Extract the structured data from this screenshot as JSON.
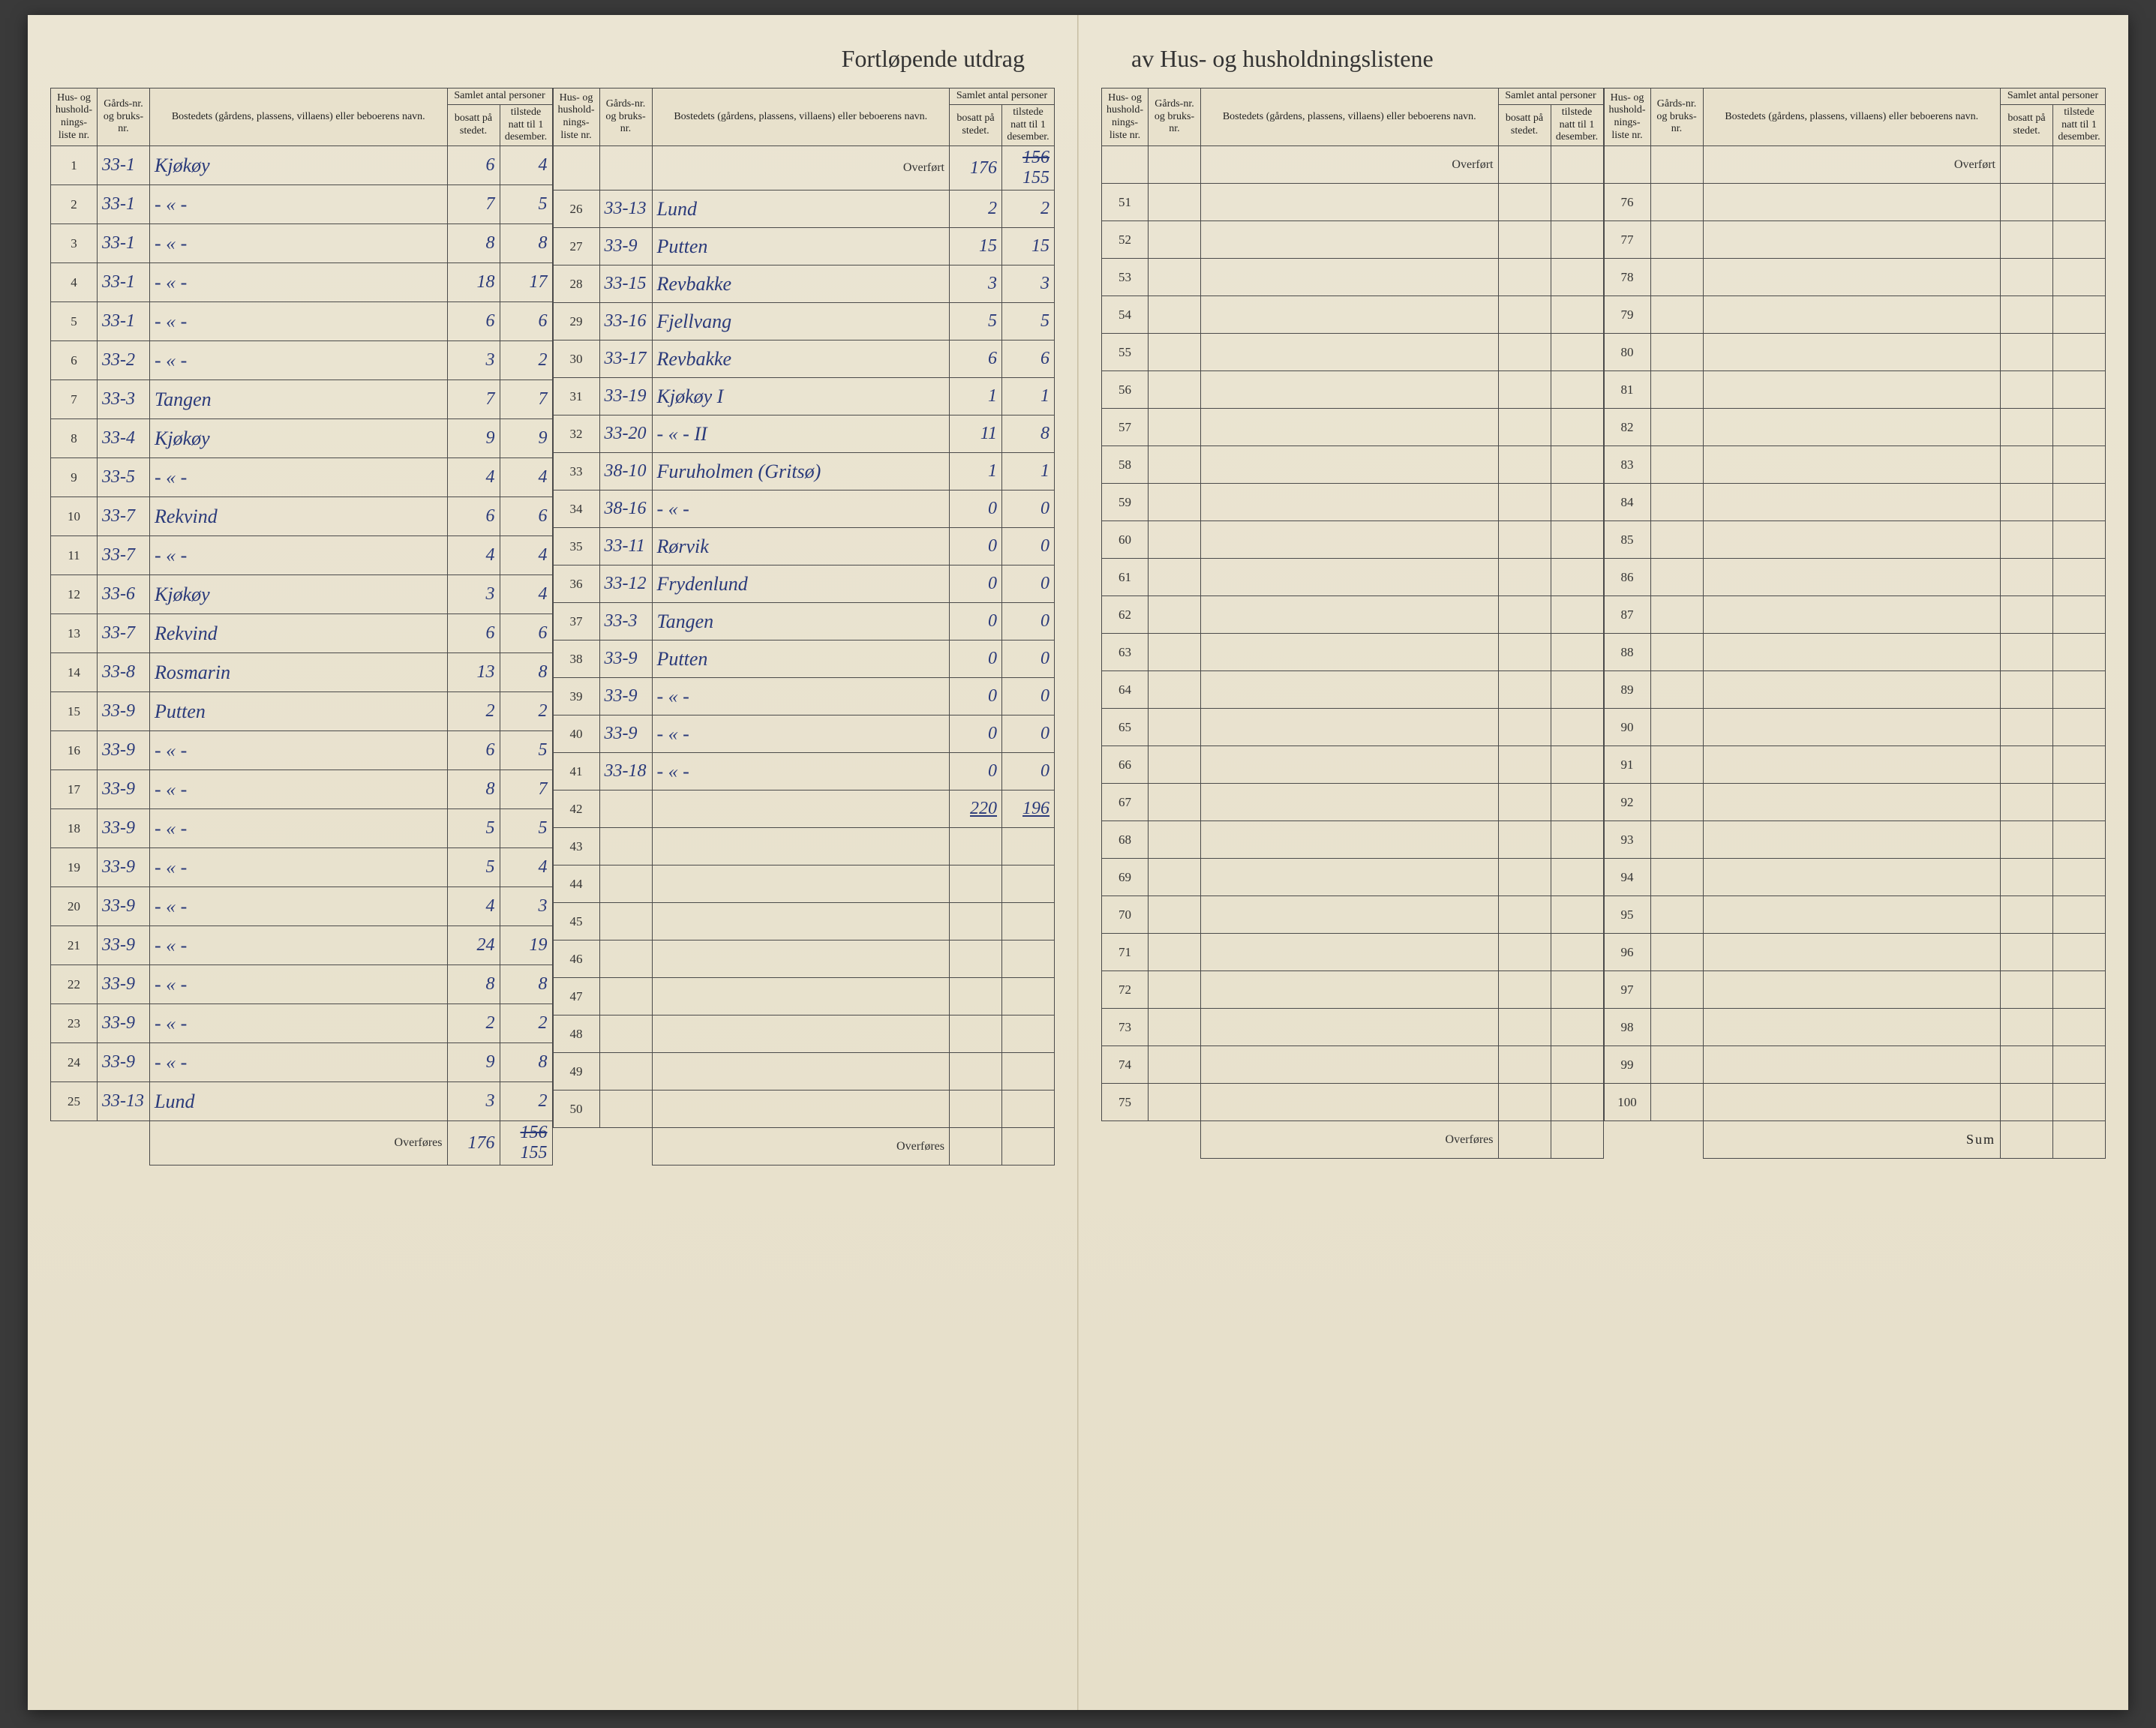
{
  "title_left": "Fortløpende utdrag",
  "title_right": "av Hus- og husholdningslistene",
  "headers": {
    "rownum": "Hus- og hushold-nings-liste nr.",
    "gards": "Gårds-nr. og bruks-nr.",
    "name": "Bostedets (gårdens, plassens, villaens) eller beboerens navn.",
    "samlet": "Samlet antal personer",
    "bosatt": "bosatt på stedet.",
    "tilstede": "tilstede natt til 1 desember."
  },
  "overfort": "Overført",
  "overfores": "Overføres",
  "sum": "Sum",
  "carry_in": {
    "bosatt": "176",
    "tilstede_struck": "156",
    "tilstede": "155"
  },
  "total_col2": {
    "bosatt": "220",
    "tilstede": "196"
  },
  "carry_out": {
    "bosatt": "176",
    "tilstede_struck": "156",
    "tilstede": "155"
  },
  "rows_col1": [
    {
      "n": "1",
      "g": "33-1",
      "name": "Kjøkøy",
      "b": "6",
      "t": "4"
    },
    {
      "n": "2",
      "g": "33-1",
      "name": "- « -",
      "b": "7",
      "t": "5"
    },
    {
      "n": "3",
      "g": "33-1",
      "name": "- « -",
      "b": "8",
      "t": "8"
    },
    {
      "n": "4",
      "g": "33-1",
      "name": "- « -",
      "b": "18",
      "t": "17"
    },
    {
      "n": "5",
      "g": "33-1",
      "name": "- « -",
      "b": "6",
      "t": "6"
    },
    {
      "n": "6",
      "g": "33-2",
      "name": "- « -",
      "b": "3",
      "t": "2"
    },
    {
      "n": "7",
      "g": "33-3",
      "name": "Tangen",
      "b": "7",
      "t": "7"
    },
    {
      "n": "8",
      "g": "33-4",
      "name": "Kjøkøy",
      "b": "9",
      "t": "9"
    },
    {
      "n": "9",
      "g": "33-5",
      "name": "- « -",
      "b": "4",
      "t": "4"
    },
    {
      "n": "10",
      "g": "33-7",
      "name": "Rekvind",
      "b": "6",
      "t": "6"
    },
    {
      "n": "11",
      "g": "33-7",
      "name": "- « -",
      "b": "4",
      "t": "4"
    },
    {
      "n": "12",
      "g": "33-6",
      "name": "Kjøkøy",
      "b": "3",
      "t": "4"
    },
    {
      "n": "13",
      "g": "33-7",
      "name": "Rekvind",
      "b": "6",
      "t": "6"
    },
    {
      "n": "14",
      "g": "33-8",
      "name": "Rosmarin",
      "b": "13",
      "t": "8"
    },
    {
      "n": "15",
      "g": "33-9",
      "name": "Putten",
      "b": "2",
      "t": "2"
    },
    {
      "n": "16",
      "g": "33-9",
      "name": "- « -",
      "b": "6",
      "t": "5"
    },
    {
      "n": "17",
      "g": "33-9",
      "name": "- « -",
      "b": "8",
      "t": "7"
    },
    {
      "n": "18",
      "g": "33-9",
      "name": "- « -",
      "b": "5",
      "t": "5"
    },
    {
      "n": "19",
      "g": "33-9",
      "name": "- « -",
      "b": "5",
      "t": "4"
    },
    {
      "n": "20",
      "g": "33-9",
      "name": "- « -",
      "b": "4",
      "t": "3"
    },
    {
      "n": "21",
      "g": "33-9",
      "name": "- « -",
      "b": "24",
      "t": "19"
    },
    {
      "n": "22",
      "g": "33-9",
      "name": "- « -",
      "b": "8",
      "t": "8"
    },
    {
      "n": "23",
      "g": "33-9",
      "name": "- « -",
      "b": "2",
      "t": "2"
    },
    {
      "n": "24",
      "g": "33-9",
      "name": "- « -",
      "b": "9",
      "t": "8"
    },
    {
      "n": "25",
      "g": "33-13",
      "name": "Lund",
      "b": "3",
      "t": "2"
    }
  ],
  "rows_col2": [
    {
      "n": "26",
      "g": "33-13",
      "name": "Lund",
      "b": "2",
      "t": "2"
    },
    {
      "n": "27",
      "g": "33-9",
      "name": "Putten",
      "b": "15",
      "t": "15"
    },
    {
      "n": "28",
      "g": "33-15",
      "name": "Revbakke",
      "b": "3",
      "t": "3"
    },
    {
      "n": "29",
      "g": "33-16",
      "name": "Fjellvang",
      "b": "5",
      "t": "5"
    },
    {
      "n": "30",
      "g": "33-17",
      "name": "Revbakke",
      "b": "6",
      "t": "6"
    },
    {
      "n": "31",
      "g": "33-19",
      "name": "Kjøkøy I",
      "b": "1",
      "t": "1"
    },
    {
      "n": "32",
      "g": "33-20",
      "name": "- « -    II",
      "b": "11",
      "t": "8"
    },
    {
      "n": "33",
      "g": "38-10",
      "name": "Furuholmen (Gritsø)",
      "b": "1",
      "t": "1"
    },
    {
      "n": "34",
      "g": "38-16",
      "name": "- « -",
      "b": "0",
      "t": "0"
    },
    {
      "n": "35",
      "g": "33-11",
      "name": "Rørvik",
      "b": "0",
      "t": "0"
    },
    {
      "n": "36",
      "g": "33-12",
      "name": "Frydenlund",
      "b": "0",
      "t": "0"
    },
    {
      "n": "37",
      "g": "33-3",
      "name": "Tangen",
      "b": "0",
      "t": "0"
    },
    {
      "n": "38",
      "g": "33-9",
      "name": "Putten",
      "b": "0",
      "t": "0"
    },
    {
      "n": "39",
      "g": "33-9",
      "name": "- « -",
      "b": "0",
      "t": "0"
    },
    {
      "n": "40",
      "g": "33-9",
      "name": "- « -",
      "b": "0",
      "t": "0"
    },
    {
      "n": "41",
      "g": "33-18",
      "name": "- « -",
      "b": "0",
      "t": "0"
    },
    {
      "n": "42",
      "g": "",
      "name": "",
      "b": "",
      "t": ""
    },
    {
      "n": "43",
      "g": "",
      "name": "",
      "b": "",
      "t": ""
    },
    {
      "n": "44",
      "g": "",
      "name": "",
      "b": "",
      "t": ""
    },
    {
      "n": "45",
      "g": "",
      "name": "",
      "b": "",
      "t": ""
    },
    {
      "n": "46",
      "g": "",
      "name": "",
      "b": "",
      "t": ""
    },
    {
      "n": "47",
      "g": "",
      "name": "",
      "b": "",
      "t": ""
    },
    {
      "n": "48",
      "g": "",
      "name": "",
      "b": "",
      "t": ""
    },
    {
      "n": "49",
      "g": "",
      "name": "",
      "b": "",
      "t": ""
    },
    {
      "n": "50",
      "g": "",
      "name": "",
      "b": "",
      "t": ""
    }
  ],
  "rows_col3": [
    {
      "n": "51"
    },
    {
      "n": "52"
    },
    {
      "n": "53"
    },
    {
      "n": "54"
    },
    {
      "n": "55"
    },
    {
      "n": "56"
    },
    {
      "n": "57"
    },
    {
      "n": "58"
    },
    {
      "n": "59"
    },
    {
      "n": "60"
    },
    {
      "n": "61"
    },
    {
      "n": "62"
    },
    {
      "n": "63"
    },
    {
      "n": "64"
    },
    {
      "n": "65"
    },
    {
      "n": "66"
    },
    {
      "n": "67"
    },
    {
      "n": "68"
    },
    {
      "n": "69"
    },
    {
      "n": "70"
    },
    {
      "n": "71"
    },
    {
      "n": "72"
    },
    {
      "n": "73"
    },
    {
      "n": "74"
    },
    {
      "n": "75"
    }
  ],
  "rows_col4": [
    {
      "n": "76"
    },
    {
      "n": "77"
    },
    {
      "n": "78"
    },
    {
      "n": "79"
    },
    {
      "n": "80"
    },
    {
      "n": "81"
    },
    {
      "n": "82"
    },
    {
      "n": "83"
    },
    {
      "n": "84"
    },
    {
      "n": "85"
    },
    {
      "n": "86"
    },
    {
      "n": "87"
    },
    {
      "n": "88"
    },
    {
      "n": "89"
    },
    {
      "n": "90"
    },
    {
      "n": "91"
    },
    {
      "n": "92"
    },
    {
      "n": "93"
    },
    {
      "n": "94"
    },
    {
      "n": "95"
    },
    {
      "n": "96"
    },
    {
      "n": "97"
    },
    {
      "n": "98"
    },
    {
      "n": "99"
    },
    {
      "n": "100"
    }
  ],
  "colors": {
    "paper": "#e8e2d0",
    "ink_printed": "#333333",
    "ink_hand": "#2a3a7a",
    "rule": "#4a4a4a"
  }
}
